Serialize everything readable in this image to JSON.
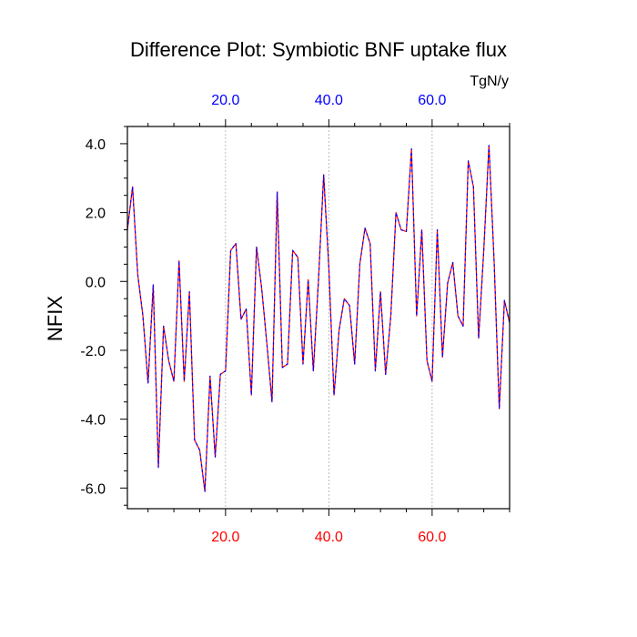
{
  "chart_data": {
    "type": "line",
    "title": "Difference Plot: Symbiotic BNF uptake flux",
    "units_label": "TgN/y",
    "ylabel": "NFIX",
    "xlabel": "",
    "xlim": [
      1,
      75
    ],
    "ylim": [
      -6.6,
      4.5
    ],
    "x_ticks": [
      20,
      40,
      60
    ],
    "x_tick_labels_bottom": [
      "20.0",
      "40.0",
      "60.0"
    ],
    "x_tick_labels_top": [
      "20.0",
      "40.0",
      "60.0"
    ],
    "y_ticks": [
      4,
      2,
      0,
      -2,
      -4,
      -6
    ],
    "y_tick_labels": [
      "4.0",
      "2.0",
      "0.0",
      "-2.0",
      "-4.0",
      "-6.0"
    ],
    "grid": "vertical dashed at x ticks",
    "series": [
      {
        "color_solid": "#ff0000",
        "color_dash": "#0000ff",
        "x": [
          1,
          2,
          3,
          4,
          5,
          6,
          7,
          8,
          9,
          10,
          11,
          12,
          13,
          14,
          15,
          16,
          17,
          18,
          19,
          20,
          21,
          22,
          23,
          24,
          25,
          26,
          27,
          28,
          29,
          30,
          31,
          32,
          33,
          34,
          35,
          36,
          37,
          38,
          39,
          40,
          41,
          42,
          43,
          44,
          45,
          46,
          47,
          48,
          49,
          50,
          51,
          52,
          53,
          54,
          55,
          56,
          57,
          58,
          59,
          60,
          61,
          62,
          63,
          64,
          65,
          66,
          67,
          68,
          69,
          70,
          71,
          72,
          73,
          74,
          75
        ],
        "y": [
          1.5,
          2.75,
          0.2,
          -1.0,
          -2.95,
          -0.1,
          -5.4,
          -1.3,
          -2.3,
          -2.9,
          0.6,
          -2.9,
          -0.3,
          -4.6,
          -4.9,
          -6.1,
          -2.75,
          -5.1,
          -2.7,
          -2.6,
          0.9,
          1.1,
          -1.1,
          -0.8,
          -3.3,
          1.0,
          -0.2,
          -1.8,
          -3.5,
          2.6,
          -2.5,
          -2.4,
          0.9,
          0.7,
          -2.4,
          0.05,
          -2.6,
          0.05,
          3.1,
          0.4,
          -3.3,
          -1.4,
          -0.5,
          -0.7,
          -2.4,
          0.5,
          1.55,
          1.1,
          -2.6,
          -0.3,
          -2.7,
          -1.0,
          2.0,
          1.5,
          1.45,
          3.85,
          -1.0,
          1.5,
          -2.3,
          -2.9,
          1.5,
          -2.2,
          -0.05,
          0.55,
          -1.0,
          -1.3,
          3.5,
          2.75,
          -1.65,
          0.9,
          3.95,
          0.6,
          -3.7,
          -0.55,
          -1.2
        ]
      }
    ]
  },
  "colors": {
    "axis": "#000000",
    "bottom_tick_labels": "#ff0000",
    "top_tick_labels": "#0000ff",
    "grid": "#aaaaaa"
  }
}
